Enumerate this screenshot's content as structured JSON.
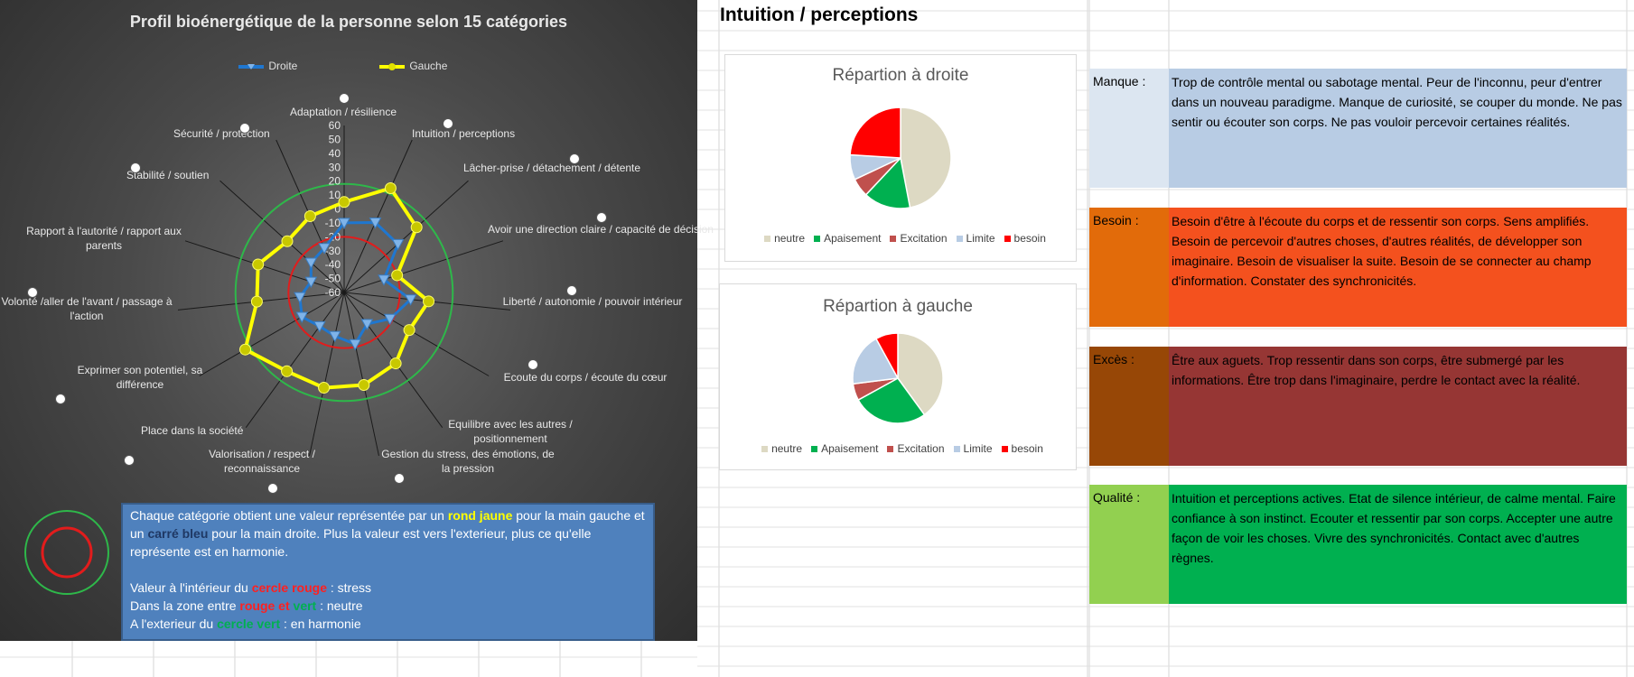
{
  "radar": {
    "title": "Profil bioénergétique de la personne selon 15 catégories",
    "legend": {
      "right": "Droite",
      "left": "Gauche"
    },
    "ticks": [
      "60",
      "50",
      "40",
      "30",
      "20",
      "10",
      "0",
      "-10",
      "-20",
      "-30",
      "-40",
      "-50",
      "-60"
    ],
    "categories": [
      "Adaptation / résilience",
      "Intuition / perceptions",
      "Lâcher-prise / détachement / détente",
      "Avoir une direction claire / capacité de décision",
      "Liberté / autonomie / pouvoir intérieur",
      "Ecoute du corps / écoute du cœur",
      "Equilibre avec les autres / positionnement",
      "Gestion du stress, des émotions, de la pression",
      "Valorisation / respect / reconnaissance",
      "Place dans la société",
      "Exprimer son potentiel, sa différence",
      "Volonté /aller de l'avant / passage à l'action",
      "Rapport à l'autorité / rapport aux parents",
      "Stabilité / soutien",
      "Sécurité / protection"
    ],
    "info": {
      "p1_a": "Chaque catégorie obtient une valeur représentée par un ",
      "p1_yellow": "rond jaune",
      "p1_b": " pour la main gauche et un ",
      "p1_blue": "carré bleu",
      "p1_c": " pour la main droite. Plus la valeur est vers l'exterieur, plus ce qu'elle représente est en harmonie.",
      "l1_a": "Valeur à l'intérieur du ",
      "l1_red": "cercle rouge",
      "l1_b": " :   stress",
      "l2_a": "Dans la zone entre ",
      "l2_red": "rouge et ",
      "l2_green": "vert",
      "l2_b": " :  neutre",
      "l3_a": "A l'exterieur du ",
      "l3_green": "cercle vert",
      "l3_b": " :  en harmonie"
    },
    "colors": {
      "right": "#1f77d0",
      "left": "#ffff00",
      "red_circle": "#e21c1c",
      "green_circle": "#2eb84a"
    }
  },
  "chart_data": [
    {
      "type": "radar",
      "title": "Profil bioénergétique de la personne selon 15 catégories",
      "categories": [
        "Adaptation / résilience",
        "Intuition / perceptions",
        "Lâcher-prise / détachement / détente",
        "Avoir une direction claire / capacité de décision",
        "Liberté / autonomie / pouvoir intérieur",
        "Ecoute du corps / écoute du cœur",
        "Equilibre avec les autres / positionnement",
        "Gestion du stress, des émotions, de la pression",
        "Valorisation / respect / reconnaissance",
        "Place dans la société",
        "Exprimer son potentiel, sa différence",
        "Volonté /aller de l'avant / passage à l'action",
        "Rapport à l'autorité / rapport aux parents",
        "Stabilité / soutien",
        "Sécurité / protection"
      ],
      "series": [
        {
          "name": "Droite",
          "values": [
            -10,
            -5,
            -8,
            -30,
            -12,
            -22,
            -32,
            -22,
            -28,
            -30,
            -25,
            -28,
            -35,
            -28,
            -25
          ]
        },
        {
          "name": "Gauche",
          "values": [
            5,
            22,
            10,
            -20,
            1,
            -6,
            3,
            8,
            10,
            10,
            22,
            3,
            5,
            -5,
            0
          ]
        }
      ],
      "rlim": [
        -60,
        60
      ],
      "ticks": [
        60,
        50,
        40,
        30,
        20,
        10,
        0,
        -10,
        -20,
        -30,
        -40,
        -50,
        -60
      ],
      "reference_circles": {
        "red": -20,
        "green": 18
      },
      "legend": "top"
    },
    {
      "type": "pie",
      "title": "Répartion à droite",
      "categories": [
        "neutre",
        "Apaisement",
        "Excitation",
        "Limite",
        "besoin"
      ],
      "values": [
        47,
        15,
        6,
        8,
        24
      ],
      "colors": [
        "#ddd9c3",
        "#00b050",
        "#c0504d",
        "#b8cce4",
        "#ff0000"
      ],
      "legend": "bottom"
    },
    {
      "type": "pie",
      "title": "Répartion à gauche",
      "categories": [
        "neutre",
        "Apaisement",
        "Excitation",
        "Limite",
        "besoin"
      ],
      "values": [
        40,
        27,
        6,
        19,
        8
      ],
      "colors": [
        "#ddd9c3",
        "#00b050",
        "#c0504d",
        "#b8cce4",
        "#ff0000"
      ],
      "legend": "bottom"
    }
  ],
  "section_title": "Intuition / perceptions",
  "rows": [
    {
      "label": "Manque :",
      "text": "Trop de contrôle mental ou sabotage mental. Peur de l'inconnu, peur d'entrer dans un nouveau paradigme. Manque de curiosité, se couper du monde. Ne pas sentir ou écouter son corps. Ne pas vouloir percevoir certaines réalités.",
      "label_color": "#dce6f1",
      "text_color": "#b8cce4"
    },
    {
      "label": "Besoin :",
      "text": "Besoin d'être à l'écoute du corps et de ressentir son corps. Sens amplifiés. Besoin de percevoir d'autres choses, d'autres réalités, de développer son imaginaire. Besoin de visualiser la suite. Besoin de se connecter au champ d'information. Constater des synchronicités.",
      "label_color": "#e26b0a",
      "text_color": "#f4511e"
    },
    {
      "label": "Excès :",
      "text": "Être aux aguets. Trop ressentir dans son corps, être submergé par les informations. Être trop dans l'imaginaire, perdre le contact avec la réalité.",
      "label_color": "#974706",
      "text_color": "#963634"
    },
    {
      "label": "Qualité :",
      "text": "Intuition et perceptions actives. Etat de silence intérieur, de calme mental. Faire confiance à son instinct. Ecouter et ressentir par son corps. Accepter une autre façon de voir les choses. Vivre des synchronicités. Contact avec d'autres règnes.",
      "label_color": "#92d050",
      "text_color": "#00b050"
    }
  ]
}
